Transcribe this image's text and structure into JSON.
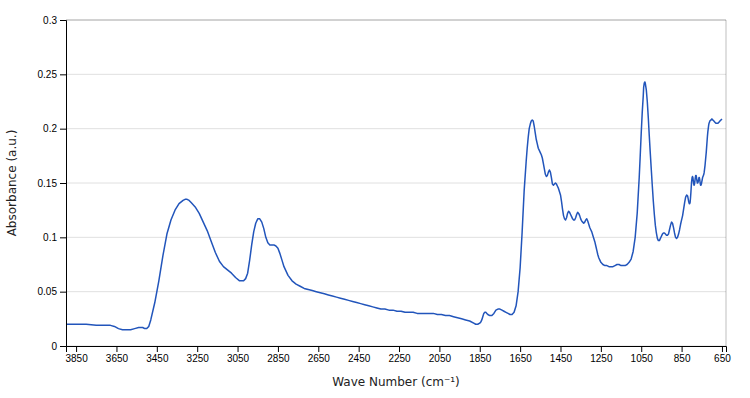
{
  "chart_data": {
    "type": "line",
    "xlabel": "Wave Number (cm⁻¹)",
    "ylabel": "Absorbance (a.u.)",
    "xlim": [
      3900,
      630
    ],
    "ylim": [
      0,
      0.3
    ],
    "xticks": [
      3850,
      3650,
      3450,
      3250,
      3050,
      2850,
      2650,
      2450,
      2250,
      2050,
      1850,
      1650,
      1450,
      1250,
      1050,
      850,
      650
    ],
    "yticks": [
      0,
      0.05,
      0.1,
      0.15,
      0.2,
      0.25,
      0.3
    ],
    "grid": "y",
    "color": "#2255bb",
    "x": [
      3900,
      3850,
      3800,
      3750,
      3700,
      3680,
      3660,
      3640,
      3620,
      3600,
      3580,
      3560,
      3540,
      3530,
      3520,
      3510,
      3500,
      3490,
      3480,
      3460,
      3440,
      3420,
      3400,
      3380,
      3360,
      3340,
      3320,
      3310,
      3300,
      3290,
      3280,
      3260,
      3240,
      3220,
      3200,
      3180,
      3160,
      3140,
      3120,
      3100,
      3080,
      3060,
      3040,
      3020,
      3010,
      3000,
      2990,
      2980,
      2970,
      2960,
      2950,
      2940,
      2930,
      2920,
      2910,
      2900,
      2890,
      2880,
      2870,
      2860,
      2850,
      2840,
      2830,
      2820,
      2800,
      2780,
      2760,
      2740,
      2720,
      2700,
      2680,
      2660,
      2640,
      2620,
      2600,
      2580,
      2560,
      2540,
      2520,
      2500,
      2480,
      2460,
      2440,
      2420,
      2400,
      2380,
      2360,
      2340,
      2320,
      2300,
      2280,
      2260,
      2240,
      2220,
      2200,
      2180,
      2160,
      2140,
      2120,
      2100,
      2080,
      2060,
      2040,
      2020,
      2000,
      1980,
      1960,
      1940,
      1920,
      1900,
      1880,
      1870,
      1860,
      1850,
      1845,
      1840,
      1835,
      1830,
      1825,
      1820,
      1815,
      1810,
      1800,
      1790,
      1780,
      1770,
      1760,
      1750,
      1740,
      1730,
      1720,
      1710,
      1700,
      1690,
      1680,
      1670,
      1660,
      1650,
      1640,
      1630,
      1620,
      1615,
      1610,
      1605,
      1600,
      1595,
      1590,
      1585,
      1580,
      1575,
      1570,
      1565,
      1560,
      1555,
      1550,
      1545,
      1540,
      1535,
      1530,
      1525,
      1520,
      1515,
      1510,
      1505,
      1500,
      1495,
      1490,
      1485,
      1480,
      1475,
      1470,
      1465,
      1460,
      1455,
      1450,
      1445,
      1440,
      1435,
      1430,
      1425,
      1420,
      1415,
      1410,
      1405,
      1400,
      1395,
      1390,
      1385,
      1380,
      1375,
      1370,
      1365,
      1360,
      1355,
      1350,
      1345,
      1340,
      1335,
      1330,
      1325,
      1320,
      1315,
      1310,
      1305,
      1300,
      1295,
      1290,
      1285,
      1280,
      1275,
      1270,
      1265,
      1260,
      1255,
      1250,
      1240,
      1230,
      1220,
      1210,
      1200,
      1190,
      1180,
      1170,
      1160,
      1150,
      1140,
      1130,
      1120,
      1110,
      1100,
      1090,
      1080,
      1070,
      1060,
      1055,
      1050,
      1045,
      1040,
      1038,
      1035,
      1032,
      1030,
      1025,
      1020,
      1015,
      1010,
      1005,
      1000,
      995,
      990,
      985,
      980,
      975,
      970,
      965,
      960,
      955,
      950,
      945,
      940,
      935,
      930,
      925,
      920,
      915,
      910,
      905,
      900,
      895,
      890,
      885,
      880,
      875,
      870,
      865,
      860,
      855,
      850,
      845,
      840,
      835,
      830,
      825,
      820,
      818,
      815,
      812,
      810,
      808,
      806,
      804,
      802,
      800,
      798,
      796,
      794,
      792,
      790,
      788,
      786,
      784,
      782,
      780,
      778,
      776,
      774,
      772,
      770,
      768,
      766,
      764,
      762,
      760,
      758,
      756,
      754,
      752,
      750,
      748,
      746,
      744,
      742,
      740,
      738,
      736,
      734,
      732,
      730,
      728,
      726,
      724,
      722,
      720,
      718,
      716,
      714,
      712,
      710,
      705,
      700,
      695,
      690,
      685,
      680,
      675,
      670,
      665,
      660,
      655,
      650
    ],
    "values": [
      0.02,
      0.02,
      0.02,
      0.019,
      0.019,
      0.019,
      0.018,
      0.016,
      0.015,
      0.015,
      0.015,
      0.016,
      0.017,
      0.017,
      0.017,
      0.016,
      0.016,
      0.018,
      0.024,
      0.04,
      0.06,
      0.083,
      0.103,
      0.116,
      0.125,
      0.131,
      0.134,
      0.135,
      0.135,
      0.134,
      0.132,
      0.128,
      0.122,
      0.114,
      0.106,
      0.096,
      0.086,
      0.078,
      0.073,
      0.07,
      0.067,
      0.063,
      0.06,
      0.06,
      0.062,
      0.067,
      0.079,
      0.093,
      0.105,
      0.113,
      0.117,
      0.117,
      0.114,
      0.108,
      0.1,
      0.095,
      0.093,
      0.093,
      0.093,
      0.092,
      0.09,
      0.085,
      0.079,
      0.073,
      0.065,
      0.06,
      0.057,
      0.055,
      0.053,
      0.052,
      0.051,
      0.05,
      0.049,
      0.048,
      0.047,
      0.046,
      0.045,
      0.044,
      0.043,
      0.042,
      0.041,
      0.04,
      0.039,
      0.038,
      0.037,
      0.036,
      0.035,
      0.034,
      0.034,
      0.033,
      0.033,
      0.032,
      0.032,
      0.031,
      0.031,
      0.031,
      0.03,
      0.03,
      0.03,
      0.03,
      0.03,
      0.029,
      0.029,
      0.028,
      0.028,
      0.027,
      0.026,
      0.025,
      0.024,
      0.023,
      0.021,
      0.02,
      0.02,
      0.021,
      0.022,
      0.024,
      0.027,
      0.03,
      0.031,
      0.031,
      0.03,
      0.029,
      0.028,
      0.028,
      0.03,
      0.033,
      0.034,
      0.034,
      0.033,
      0.032,
      0.031,
      0.03,
      0.029,
      0.029,
      0.031,
      0.037,
      0.05,
      0.072,
      0.105,
      0.143,
      0.17,
      0.182,
      0.192,
      0.2,
      0.204,
      0.207,
      0.208,
      0.207,
      0.202,
      0.196,
      0.19,
      0.186,
      0.182,
      0.18,
      0.178,
      0.176,
      0.173,
      0.168,
      0.163,
      0.158,
      0.156,
      0.157,
      0.16,
      0.162,
      0.16,
      0.155,
      0.149,
      0.148,
      0.149,
      0.15,
      0.149,
      0.147,
      0.145,
      0.142,
      0.139,
      0.133,
      0.126,
      0.12,
      0.117,
      0.116,
      0.118,
      0.122,
      0.124,
      0.123,
      0.121,
      0.119,
      0.117,
      0.116,
      0.116,
      0.118,
      0.121,
      0.123,
      0.122,
      0.12,
      0.117,
      0.115,
      0.114,
      0.113,
      0.114,
      0.116,
      0.117,
      0.115,
      0.112,
      0.109,
      0.107,
      0.105,
      0.102,
      0.099,
      0.096,
      0.092,
      0.088,
      0.084,
      0.081,
      0.079,
      0.077,
      0.075,
      0.074,
      0.074,
      0.073,
      0.073,
      0.073,
      0.074,
      0.075,
      0.075,
      0.074,
      0.074,
      0.074,
      0.075,
      0.077,
      0.08,
      0.087,
      0.1,
      0.122,
      0.155,
      0.175,
      0.196,
      0.215,
      0.23,
      0.238,
      0.242,
      0.243,
      0.242,
      0.236,
      0.225,
      0.21,
      0.193,
      0.177,
      0.162,
      0.147,
      0.133,
      0.121,
      0.111,
      0.104,
      0.099,
      0.097,
      0.097,
      0.099,
      0.101,
      0.103,
      0.104,
      0.104,
      0.103,
      0.102,
      0.102,
      0.103,
      0.107,
      0.111,
      0.114,
      0.113,
      0.109,
      0.104,
      0.1,
      0.099,
      0.1,
      0.103,
      0.107,
      0.112,
      0.116,
      0.12,
      0.126,
      0.132,
      0.137,
      0.139,
      0.138,
      0.136,
      0.133,
      0.131,
      0.131,
      0.132,
      0.136,
      0.141,
      0.147,
      0.152,
      0.155,
      0.156,
      0.155,
      0.152,
      0.149,
      0.148,
      0.149,
      0.152,
      0.155,
      0.157,
      0.157,
      0.155,
      0.152,
      0.15,
      0.15,
      0.151,
      0.153,
      0.155,
      0.155,
      0.153,
      0.15,
      0.148,
      0.148,
      0.149,
      0.151,
      0.153,
      0.155,
      0.156,
      0.157,
      0.158,
      0.16,
      0.163,
      0.166,
      0.17,
      0.174,
      0.178,
      0.183,
      0.188,
      0.193,
      0.197,
      0.2,
      0.203,
      0.205,
      0.206,
      0.207,
      0.208,
      0.209,
      0.208,
      0.207,
      0.206,
      0.205,
      0.205,
      0.205,
      0.206,
      0.207,
      0.208,
      0.209
    ]
  }
}
